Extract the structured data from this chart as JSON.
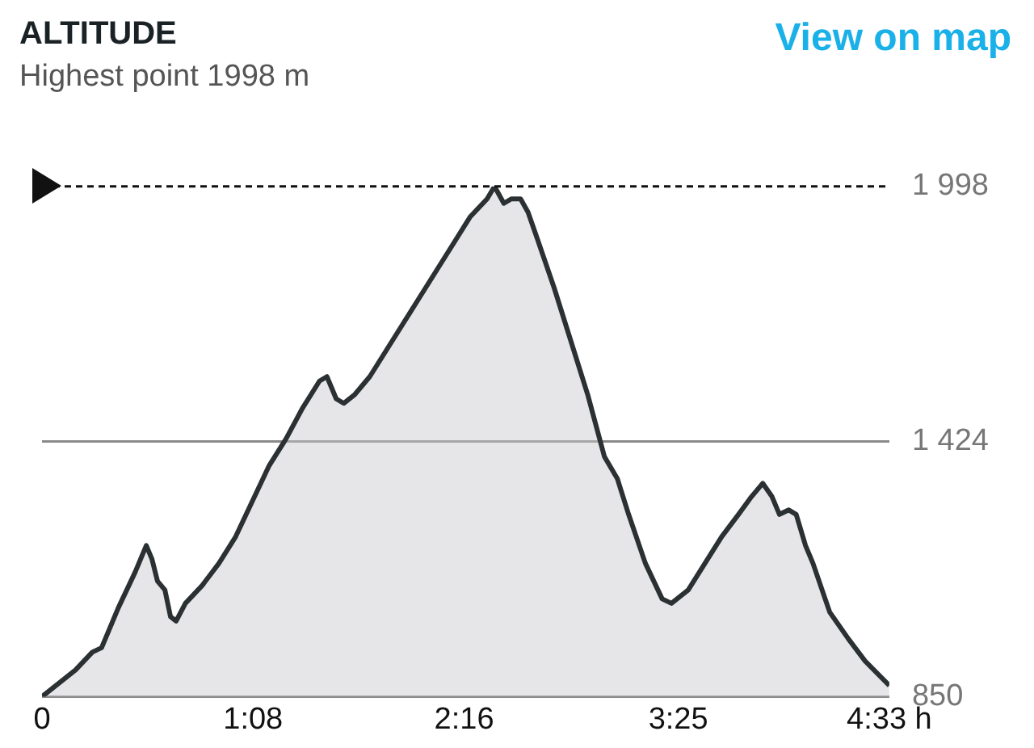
{
  "chart_data": {
    "type": "area",
    "title": "ALTITUDE",
    "subtitle": "Highest point 1998 m",
    "annotations": [
      "View on map"
    ],
    "x": [
      0,
      0.09,
      0.18,
      0.27,
      0.32,
      0.41,
      0.5,
      0.56,
      0.59,
      0.62,
      0.66,
      0.69,
      0.72,
      0.77,
      0.86,
      0.95,
      1.04,
      1.13,
      1.22,
      1.31,
      1.4,
      1.49,
      1.53,
      1.58,
      1.62,
      1.68,
      1.76,
      1.85,
      1.94,
      2.03,
      2.12,
      2.21,
      2.3,
      2.39,
      2.43,
      2.48,
      2.52,
      2.57,
      2.61,
      2.66,
      2.75,
      2.84,
      2.93,
      3.02,
      3.09,
      3.15,
      3.24,
      3.33,
      3.38,
      3.47,
      3.56,
      3.65,
      3.74,
      3.81,
      3.87,
      3.92,
      3.96,
      4.01,
      4.05,
      4.1,
      4.14,
      4.23,
      4.33,
      4.42,
      4.55
    ],
    "series": [
      {
        "color": "#2b3133",
        "values": [
          850,
          880,
          910,
          950,
          960,
          1050,
          1130,
          1190,
          1160,
          1110,
          1090,
          1030,
          1020,
          1060,
          1100,
          1150,
          1210,
          1290,
          1370,
          1430,
          1500,
          1560,
          1570,
          1520,
          1510,
          1530,
          1570,
          1630,
          1690,
          1750,
          1810,
          1870,
          1930,
          1970,
          1998,
          1960,
          1970,
          1970,
          1940,
          1880,
          1770,
          1650,
          1530,
          1390,
          1340,
          1260,
          1150,
          1070,
          1060,
          1090,
          1150,
          1210,
          1260,
          1300,
          1330,
          1300,
          1260,
          1270,
          1260,
          1190,
          1150,
          1040,
          980,
          930,
          875
        ]
      }
    ],
    "xlim": [
      0,
      4.55
    ],
    "xticks": [
      0,
      {
        "value": 1.1333,
        "label": "1:08"
      },
      {
        "value": 2.2667,
        "label": "2:16"
      },
      {
        "value": 3.4167,
        "label": "3:25"
      },
      {
        "value": 4.55,
        "label": "4:33 h"
      }
    ],
    "ylim": [
      850,
      1998
    ],
    "yticks": [
      {
        "value": 850,
        "label": "850"
      },
      {
        "value": 1424,
        "label": "1 424"
      },
      {
        "value": 1998,
        "label": "1 998"
      }
    ],
    "ref_lines": [
      {
        "axis": "y",
        "value": 1998,
        "color": "#111111",
        "line_style": "dashed"
      }
    ],
    "grid": "y",
    "legend": false,
    "marker": "none",
    "line_style": "solid"
  }
}
